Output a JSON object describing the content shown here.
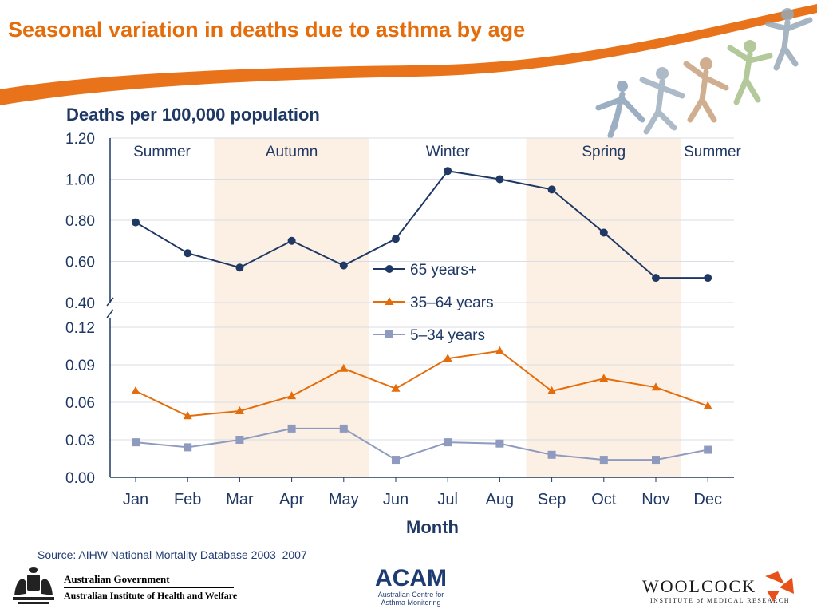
{
  "slide": {
    "title": "Seasonal variation in deaths due to asthma by age",
    "source": "Source: AIHW National Mortality Database 2003–2007"
  },
  "logos": {
    "gov_line1": "Australian Government",
    "gov_line2": "Australian Institute of Health and Welfare",
    "acam_name": "ACAM",
    "acam_sub1": "Australian Centre for",
    "acam_sub2": "Asthma Monitoring",
    "woolcock_name": "WOOLCOCK",
    "woolcock_sub": "INSTITUTE of MEDICAL RESEARCH"
  },
  "colors": {
    "title": "#e46c0a",
    "swoosh": "#e8731a",
    "season_band": "#fcefe3",
    "series_65": "#1f3864",
    "series_35": "#e46c0a",
    "series_5": "#8e9bbf"
  },
  "chart_data": {
    "type": "line",
    "title": "Deaths per 100,000 population",
    "xlabel": "Month",
    "ylabel": "",
    "categories": [
      "Jan",
      "Feb",
      "Mar",
      "Apr",
      "May",
      "Jun",
      "Jul",
      "Aug",
      "Sep",
      "Oct",
      "Nov",
      "Dec"
    ],
    "broken_y_axis": true,
    "upper_panel": {
      "ylim": [
        0.4,
        1.2
      ],
      "ticks": [
        "0.40",
        "0.60",
        "0.80",
        "1.00",
        "1.20"
      ],
      "tick_values": [
        0.4,
        0.6,
        0.8,
        1.0,
        1.2
      ]
    },
    "lower_panel": {
      "ylim": [
        0.0,
        0.12
      ],
      "ticks": [
        "0.00",
        "0.03",
        "0.06",
        "0.09",
        "0.12"
      ],
      "tick_values": [
        0.0,
        0.03,
        0.06,
        0.09,
        0.12
      ]
    },
    "seasons": [
      {
        "name": "Summer",
        "from": "Jan",
        "to": "Feb",
        "shaded": false
      },
      {
        "name": "Autumn",
        "from": "Mar",
        "to": "May",
        "shaded": true
      },
      {
        "name": "Winter",
        "from": "Jun",
        "to": "Aug",
        "shaded": false
      },
      {
        "name": "Spring",
        "from": "Sep",
        "to": "Nov",
        "shaded": true
      },
      {
        "name": "Summer",
        "from": "Dec",
        "to": "Dec",
        "shaded": false
      }
    ],
    "series": [
      {
        "name": "65 years+",
        "panel": "upper",
        "marker": "circle",
        "values": [
          0.79,
          0.64,
          0.57,
          0.7,
          0.58,
          0.71,
          1.04,
          1.0,
          0.95,
          0.74,
          0.52,
          0.52
        ]
      },
      {
        "name": "35–64 years",
        "panel": "lower",
        "marker": "triangle",
        "values": [
          0.069,
          0.049,
          0.053,
          0.065,
          0.087,
          0.071,
          0.095,
          0.101,
          0.069,
          0.079,
          0.072,
          0.057
        ]
      },
      {
        "name": "5–34 years",
        "panel": "lower",
        "marker": "square",
        "values": [
          0.028,
          0.024,
          0.03,
          0.039,
          0.039,
          0.014,
          0.028,
          0.027,
          0.018,
          0.014,
          0.014,
          0.022
        ]
      }
    ],
    "legend_position": "center-right",
    "grid": true
  }
}
